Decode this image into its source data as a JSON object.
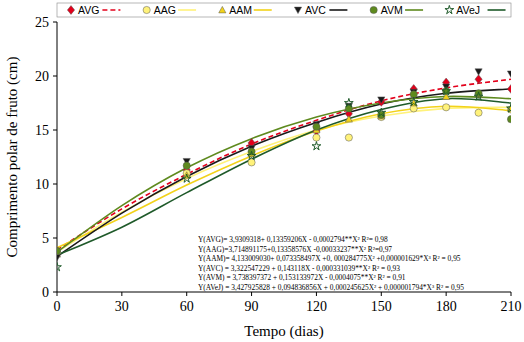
{
  "chart_data": {
    "type": "scatter",
    "x_label": "Tempo (dias)",
    "y_label": "Comprimento polar de fruto (cm)",
    "x": [
      0,
      60,
      90,
      120,
      135,
      150,
      165,
      180,
      195,
      210
    ],
    "fit_x": [
      0,
      30,
      60,
      90,
      120,
      150,
      180,
      210
    ],
    "xlim": [
      0,
      210
    ],
    "xticks": [
      0,
      30,
      60,
      90,
      120,
      150,
      180,
      210
    ],
    "ylim": [
      0,
      25
    ],
    "yticks": [
      0,
      5,
      10,
      15,
      20,
      25
    ],
    "legend": "top",
    "grid": false,
    "series": [
      {
        "name": "AVG",
        "color": "#e3001b",
        "marker": "diamond",
        "line_style": "dashed",
        "values": [
          3.8,
          11.3,
          13.8,
          14.9,
          16.5,
          17.6,
          18.8,
          19.4,
          19.7,
          18.8
        ],
        "fit": [
          3.9,
          7.7,
          10.9,
          13.7,
          15.9,
          17.7,
          18.9,
          19.7
        ]
      },
      {
        "name": "AAG",
        "color": "#fff27a",
        "marker": "circle",
        "line_style": "solid",
        "values": [
          3.7,
          11.0,
          12.0,
          14.3,
          14.3,
          16.2,
          17.0,
          17.1,
          16.6,
          16.9
        ],
        "fit": [
          3.7,
          7.4,
          10.5,
          13.0,
          15.0,
          16.3,
          17.0,
          17.1
        ]
      },
      {
        "name": "AAM",
        "color": "#f2d21a",
        "marker": "triangle",
        "line_style": "solid",
        "values": [
          3.5,
          10.8,
          12.8,
          15.0,
          16.0,
          16.3,
          17.5,
          18.1,
          18.3,
          17.0
        ],
        "fit": [
          4.1,
          6.9,
          9.9,
          12.6,
          14.9,
          16.5,
          17.2,
          16.8
        ]
      },
      {
        "name": "AVC",
        "color": "#1a1a1a",
        "marker": "triangle-down",
        "line_style": "solid",
        "values": [
          3.2,
          12.1,
          13.3,
          15.5,
          17.2,
          17.8,
          18.5,
          19.0,
          20.4,
          20.2
        ],
        "fit": [
          3.3,
          7.3,
          10.7,
          13.5,
          15.7,
          17.4,
          18.4,
          18.8
        ]
      },
      {
        "name": "AVM",
        "color": "#5e8a1e",
        "marker": "circle",
        "line_style": "solid",
        "values": [
          3.8,
          11.7,
          13.0,
          15.3,
          17.0,
          16.4,
          18.3,
          18.6,
          18.4,
          16.0
        ],
        "fit": [
          3.7,
          8.0,
          11.5,
          14.2,
          16.2,
          17.5,
          18.1,
          17.9
        ]
      },
      {
        "name": "AVeJ",
        "color": "#1f5a2a",
        "marker": "star",
        "line_style": "solid",
        "values": [
          2.3,
          10.5,
          12.6,
          13.5,
          17.5,
          16.6,
          17.6,
          18.6,
          18.1,
          17.0
        ],
        "fit": [
          3.4,
          6.0,
          9.2,
          12.3,
          15.0,
          16.9,
          17.9,
          17.5
        ]
      }
    ],
    "annotations": [
      "Y(AVG)= 3,9309318+ 0,13359206X - 0,0002794**X² R²= 0,98",
      "Y(AAG)=3,714891175+0,13358576X -0,00033237**X² R²=0,97",
      "Y(AAM)= 4,133009030+ 0,073358497X +0, 000284775X² +0,000001629*X³ R² = 0,95",
      "Y(AVC) = 3,322547229 + 0,143118X - 0,000331039**X²  R² = 0,93",
      "Y(AVM) = 3,738397372 + 0,153133972X - 0,0004075**X²  R² = 0,91",
      "Y(AVeJ) = 3,427925828 + 0,094836856X + 0,000245625X² + 0,000001794*X³ R² = 0,95"
    ]
  }
}
